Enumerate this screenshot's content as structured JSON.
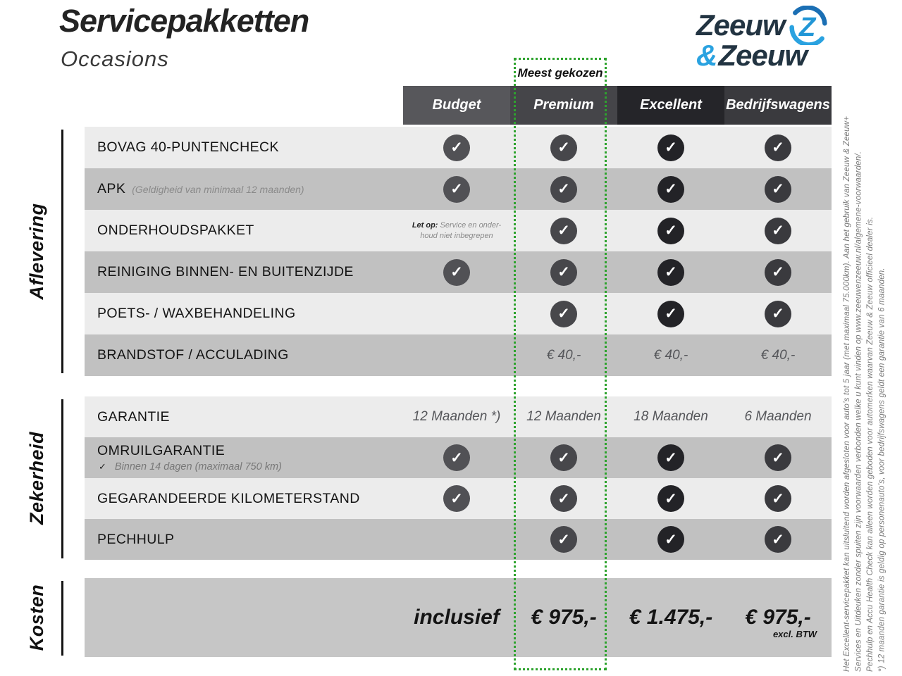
{
  "header": {
    "title": "Servicepakketten",
    "subtitle": "Occasions"
  },
  "logo": {
    "word1": "Zeeuw",
    "amp": "&",
    "word2": "Zeeuw",
    "z_letter": "Z",
    "navy": "#223442",
    "blue": "#2aa2e0",
    "blue_dark": "#1b6fb4"
  },
  "highlight": {
    "label": "Meest gekozen",
    "border_color": "#2ea32e"
  },
  "icons": {
    "check": "✓"
  },
  "columns": [
    {
      "label": "Budget",
      "header_color": "#57575b",
      "check_color": "#515155"
    },
    {
      "label": "Premium",
      "header_color": "#454549",
      "check_color": "#47474b",
      "highlight": true
    },
    {
      "label": "Excellent",
      "header_color": "#252529",
      "check_color": "#232327"
    },
    {
      "label": "Bedrijfswagens",
      "header_color": "#3a3a3e",
      "check_color": "#3a3a3e"
    }
  ],
  "sections": [
    {
      "label": "Aflevering",
      "rows": [
        {
          "label": "BOVAG 40-PUNTENCHECK",
          "cells": [
            {
              "t": "check"
            },
            {
              "t": "check"
            },
            {
              "t": "check"
            },
            {
              "t": "check"
            }
          ]
        },
        {
          "label": "APK",
          "inline_note": "(Geldigheid van minimaal 12 maanden)",
          "cells": [
            {
              "t": "check"
            },
            {
              "t": "check"
            },
            {
              "t": "check"
            },
            {
              "t": "check"
            }
          ]
        },
        {
          "label": "ONDERHOUDSPAKKET",
          "cells": [
            {
              "t": "note",
              "bold": "Let op:",
              "lines": [
                "Service en onder-",
                "houd niet inbegrepen"
              ]
            },
            {
              "t": "check"
            },
            {
              "t": "check"
            },
            {
              "t": "check"
            }
          ]
        },
        {
          "label": "REINIGING BINNEN- EN BUITENZIJDE",
          "cells": [
            {
              "t": "check"
            },
            {
              "t": "check"
            },
            {
              "t": "check"
            },
            {
              "t": "check"
            }
          ]
        },
        {
          "label": "POETS- / WAXBEHANDELING",
          "cells": [
            {
              "t": "empty"
            },
            {
              "t": "check"
            },
            {
              "t": "check"
            },
            {
              "t": "check"
            }
          ]
        },
        {
          "label": "BRANDSTOF / ACCULADING",
          "cells": [
            {
              "t": "empty"
            },
            {
              "t": "text",
              "v": "€ 40,-"
            },
            {
              "t": "text",
              "v": "€ 40,-"
            },
            {
              "t": "text",
              "v": "€ 40,-"
            }
          ]
        }
      ]
    },
    {
      "label": "Zekerheid",
      "rows": [
        {
          "label": "GARANTIE",
          "cells": [
            {
              "t": "text",
              "v": "12 Maanden *)"
            },
            {
              "t": "text",
              "v": "12 Maanden"
            },
            {
              "t": "text",
              "v": "18 Maanden"
            },
            {
              "t": "text",
              "v": "6 Maanden"
            }
          ]
        },
        {
          "label": "OMRUILGARANTIE",
          "sub_check": "Binnen 14 dagen (maximaal 750 km)",
          "cells": [
            {
              "t": "check"
            },
            {
              "t": "check"
            },
            {
              "t": "check"
            },
            {
              "t": "check"
            }
          ]
        },
        {
          "label": "GEGARANDEERDE KILOMETERSTAND",
          "cells": [
            {
              "t": "check"
            },
            {
              "t": "check"
            },
            {
              "t": "check"
            },
            {
              "t": "check"
            }
          ]
        },
        {
          "label": "PECHHULP",
          "cells": [
            {
              "t": "empty"
            },
            {
              "t": "check"
            },
            {
              "t": "check"
            },
            {
              "t": "check"
            }
          ]
        }
      ]
    }
  ],
  "kosten": {
    "label": "Kosten",
    "values": [
      {
        "v": "inclusief"
      },
      {
        "v": "€ 975,-"
      },
      {
        "v": "€ 1.475,-"
      },
      {
        "v": "€ 975,-",
        "note": "excl. BTW"
      }
    ]
  },
  "footnotes": [
    "Het Excellent-servicepakket kan uitsluitend worden afgesloten voor auto’s tot 5 jaar (met maximaal 75.000km). Aan het gebruik van Zeeuw & Zeeuw+",
    "Services en Uitdeuken zonder spuiten zijn voorwaarden verbonden welke u kunt vinden op www.zeeuwenzeeuw.nl/algemene-voorwaarden/.",
    "Pechhulp en Accu Health Check kan alleen worden geboden voor automerken waarvan Zeeuw & Zeeuw officieel dealer is.",
    "*) 12 maanden garantie is geldig op personenauto’s, voor bedrijfswagens geldt een garantie van 6 maanden."
  ]
}
